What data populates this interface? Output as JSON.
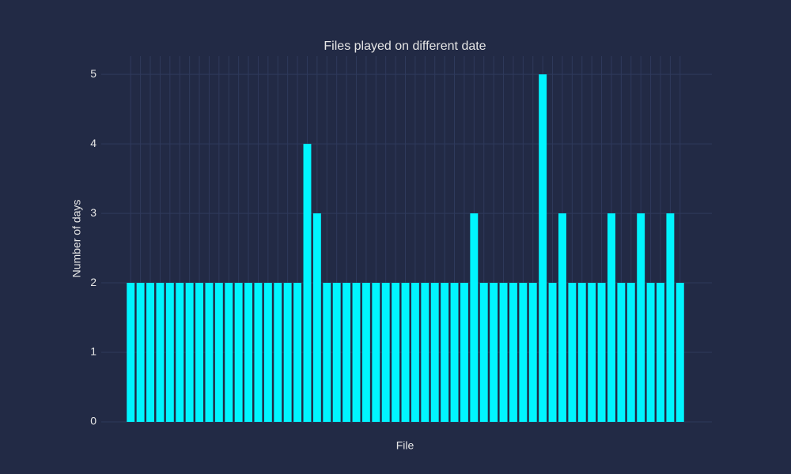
{
  "chart_data": {
    "type": "bar",
    "title": "Files played on different date",
    "x_label": "File",
    "y_label": "Number of days",
    "categories": [
      null,
      null,
      null,
      null,
      null,
      null,
      null,
      null,
      null,
      null,
      null,
      null,
      null,
      null,
      null,
      null,
      null,
      null,
      null,
      null,
      null,
      null,
      null,
      null,
      null,
      null,
      null,
      null,
      null,
      null,
      null,
      null,
      null,
      null,
      null,
      null,
      null,
      null,
      null,
      null,
      null,
      null,
      null,
      null,
      null,
      null,
      null,
      null,
      null,
      null,
      null,
      null,
      null,
      null,
      null,
      null,
      null
    ],
    "values": [
      2,
      2,
      2,
      2,
      2,
      2,
      2,
      2,
      2,
      2,
      2,
      2,
      2,
      2,
      2,
      2,
      2,
      2,
      4,
      3,
      2,
      2,
      2,
      2,
      2,
      2,
      2,
      2,
      2,
      2,
      2,
      2,
      2,
      2,
      2,
      3,
      2,
      2,
      2,
      2,
      2,
      2,
      5,
      2,
      3,
      2,
      2,
      2,
      2,
      3,
      2,
      2,
      3,
      2,
      2,
      3,
      2
    ],
    "color": "#00f5ff",
    "ylim": [
      0,
      5.263
    ],
    "yticks": [
      0,
      1,
      2,
      3,
      4,
      5
    ],
    "grid": true
  }
}
